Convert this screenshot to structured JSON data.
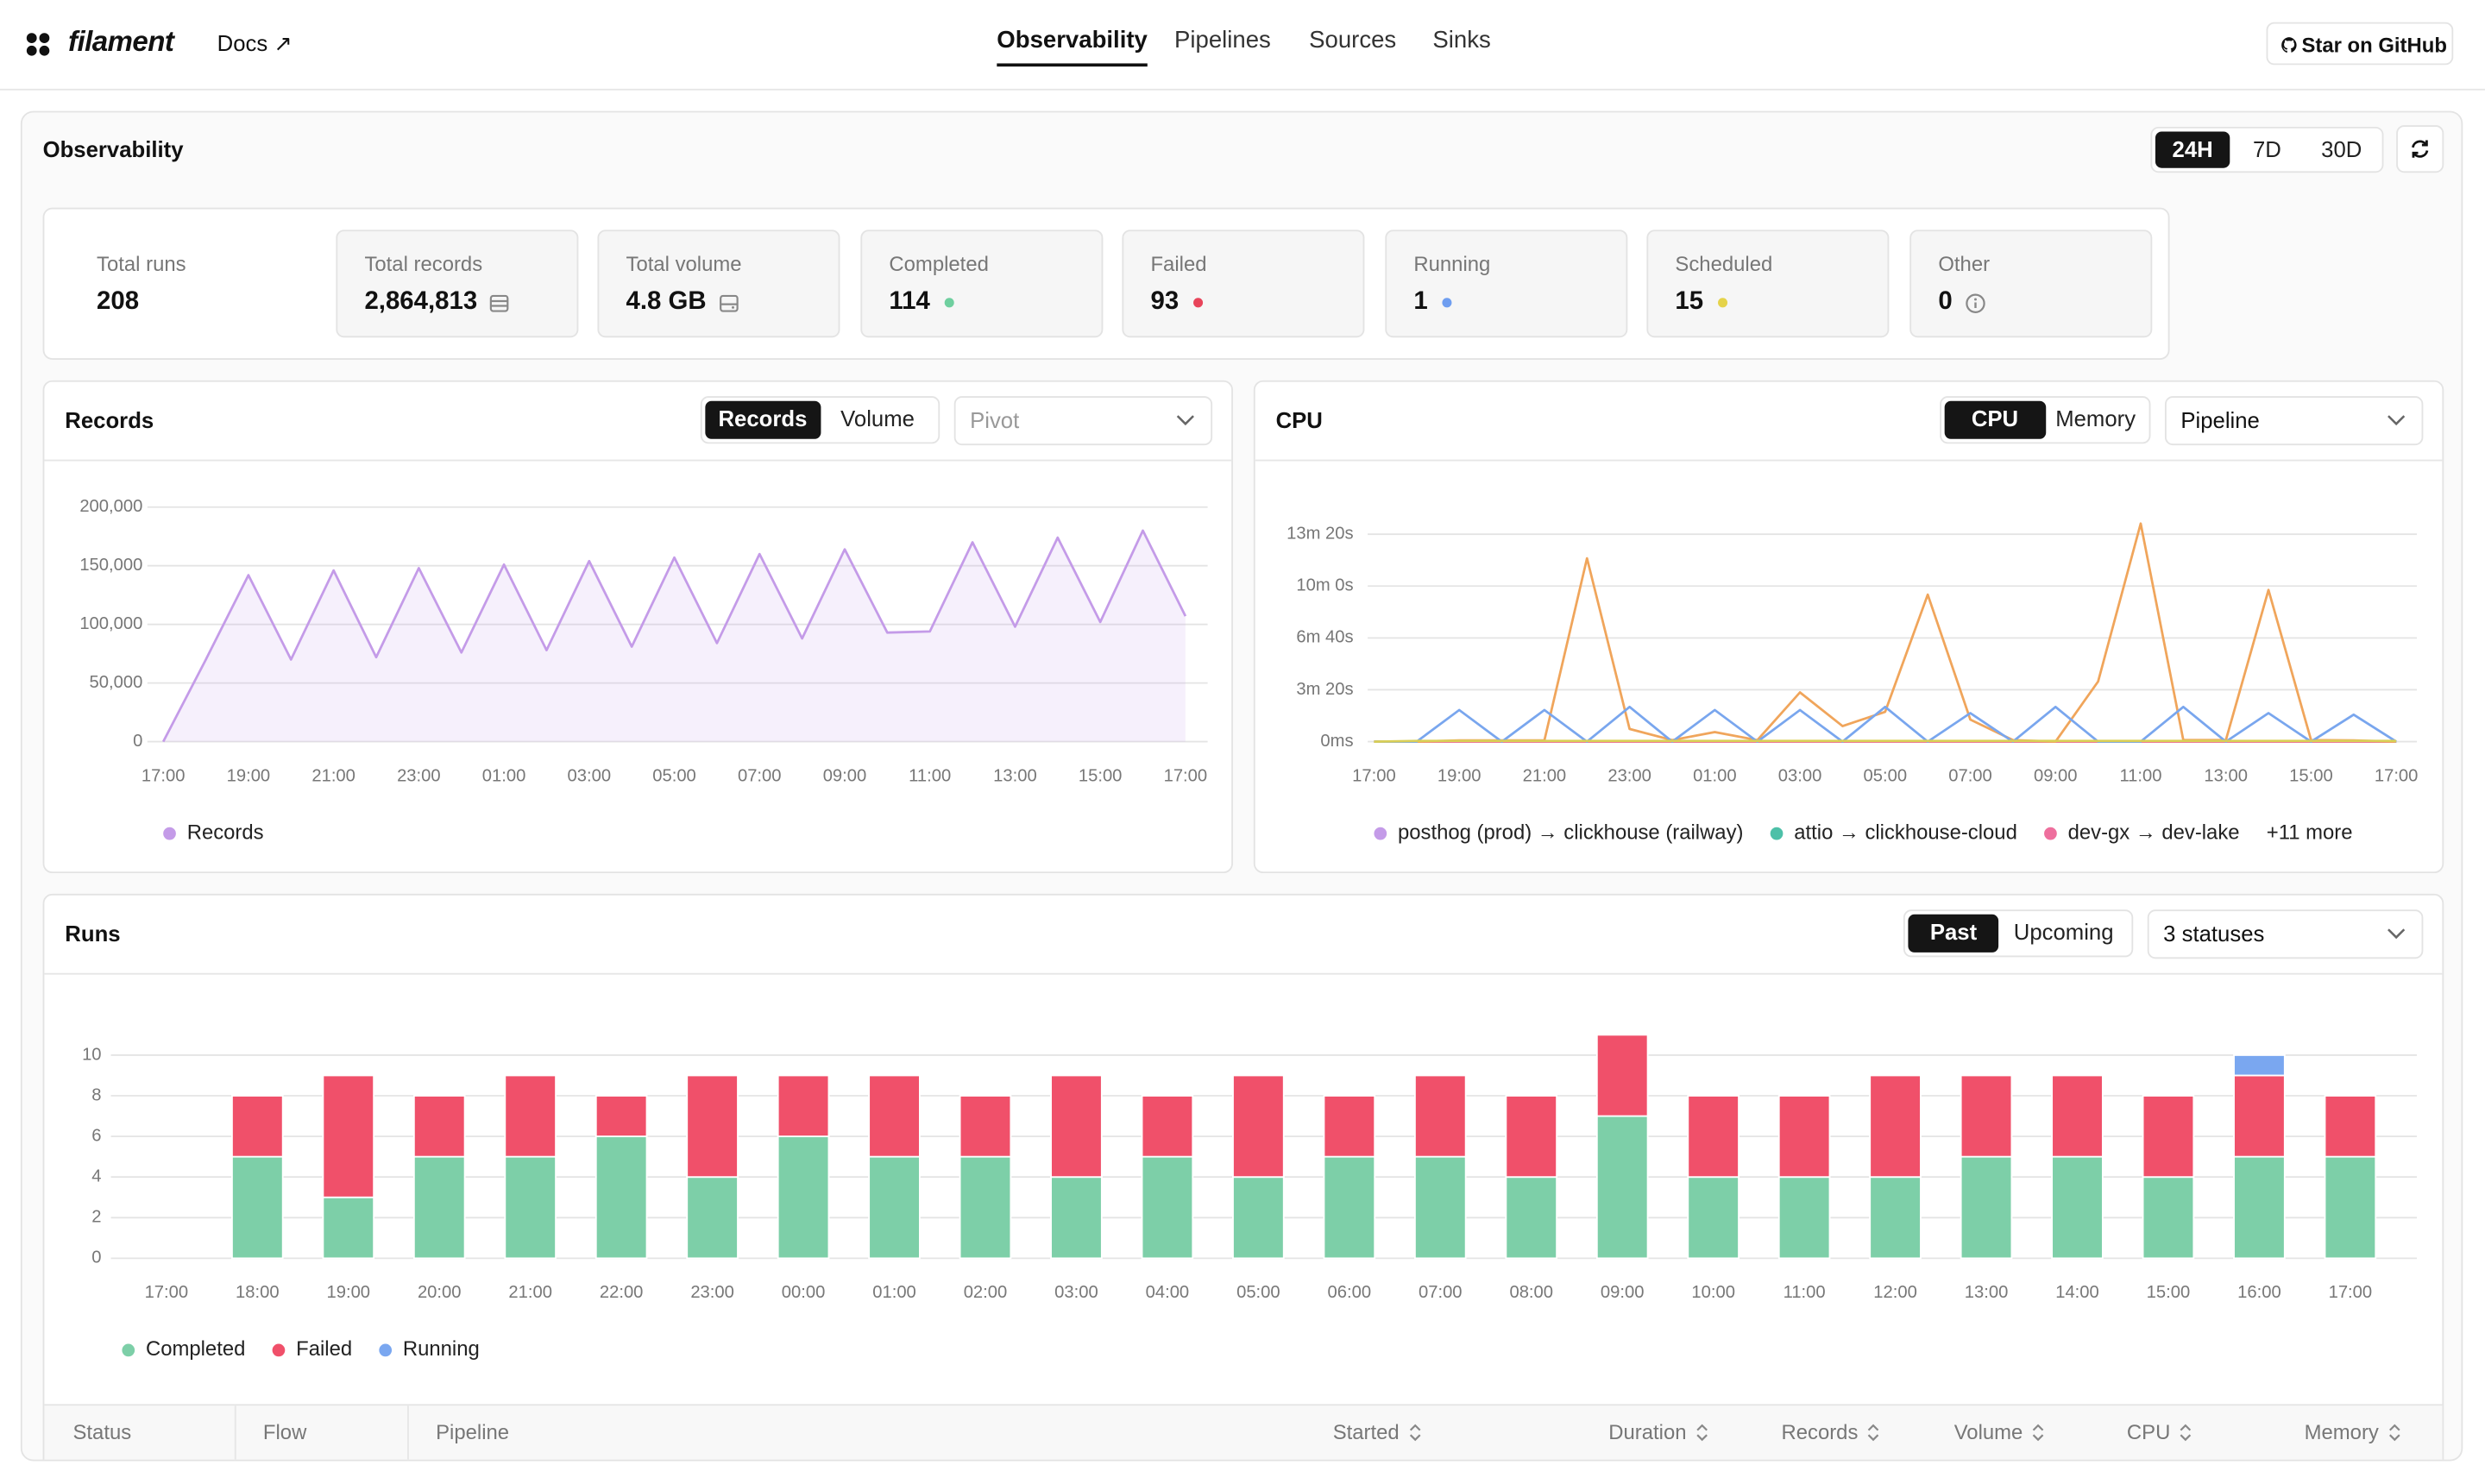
{
  "nav": {
    "brand": "filament",
    "docs": "Docs ↗",
    "tabs": [
      "Observability",
      "Pipelines",
      "Sources",
      "Sinks"
    ],
    "github": "Star on GitHub"
  },
  "page": {
    "title": "Observability",
    "ranges": [
      "24H",
      "7D",
      "30D"
    ]
  },
  "stats": [
    {
      "label": "Total runs",
      "value": "208"
    },
    {
      "label": "Total records",
      "value": "2,864,813"
    },
    {
      "label": "Total volume",
      "value": "4.8 GB"
    },
    {
      "label": "Completed",
      "value": "114"
    },
    {
      "label": "Failed",
      "value": "93"
    },
    {
      "label": "Running",
      "value": "1"
    },
    {
      "label": "Scheduled",
      "value": "15"
    },
    {
      "label": "Other",
      "value": "0"
    }
  ],
  "chart_data": [
    {
      "type": "line",
      "title": "Records",
      "toggles": [
        "Records",
        "Volume"
      ],
      "select": "Pivot",
      "area": true,
      "grid": true,
      "categories": [
        "17:00",
        null,
        "19:00",
        null,
        "21:00",
        null,
        "23:00",
        null,
        "01:00",
        null,
        "03:00",
        null,
        "05:00",
        null,
        "07:00",
        null,
        "09:00",
        null,
        "11:00",
        null,
        "13:00",
        null,
        "15:00",
        null,
        "17:00"
      ],
      "series": [
        {
          "name": "Records",
          "color": "#c49be8",
          "values": [
            0,
            70000,
            142000,
            70000,
            146000,
            72000,
            148000,
            76000,
            151000,
            78000,
            154000,
            81000,
            157000,
            84000,
            160000,
            88000,
            164000,
            93000,
            94000,
            170000,
            98000,
            174000,
            102000,
            180000,
            107000
          ]
        }
      ],
      "ylim": [
        0,
        200000
      ],
      "yticks": [
        0,
        {
          "value": 50000,
          "label": "50,000"
        },
        {
          "value": 100000,
          "label": "100,000"
        },
        {
          "value": 150000,
          "label": "150,000"
        },
        {
          "value": 200000,
          "label": "200,000"
        }
      ]
    },
    {
      "type": "line",
      "title": "CPU",
      "toggles": [
        "CPU",
        "Memory"
      ],
      "select": "Pipeline",
      "grid": true,
      "categories": [
        "17:00",
        null,
        "19:00",
        null,
        "21:00",
        null,
        "23:00",
        null,
        "01:00",
        null,
        "03:00",
        null,
        "05:00",
        null,
        "07:00",
        null,
        "09:00",
        null,
        "11:00",
        null,
        "13:00",
        null,
        "15:00",
        null,
        "17:00"
      ],
      "series": [
        {
          "name": "posthog (prod) → clickhouse (railway)",
          "color": "#c49be8",
          "values": [
            0,
            0,
            0,
            0,
            0,
            0,
            0,
            0,
            0,
            0,
            0,
            0,
            0,
            0,
            0,
            0,
            0,
            0,
            0,
            0,
            0,
            0,
            0,
            0,
            0
          ]
        },
        {
          "name": "attio → clickhouse-cloud",
          "color": "#4dc0a8",
          "values": [
            0,
            0,
            0,
            0,
            0,
            0,
            0,
            0,
            0,
            0,
            0,
            0,
            0,
            0,
            0,
            0,
            0,
            0,
            0,
            0,
            0,
            0,
            0,
            0,
            0
          ]
        },
        {
          "name": "dev-gx → dev-lake",
          "color": "#ee6f9d",
          "values": [
            0,
            0,
            0,
            0,
            0,
            0,
            0,
            0,
            0,
            0,
            0,
            0,
            0,
            0,
            0,
            0,
            0,
            0,
            0,
            0,
            0,
            0,
            0,
            0,
            0
          ]
        },
        {
          "color": "#f0a55b",
          "values": [
            0,
            0,
            5,
            5,
            5,
            707,
            49,
            6,
            37,
            6,
            190,
            60,
            115,
            567,
            85,
            6,
            0,
            232,
            841,
            6,
            6,
            585,
            6,
            5,
            0
          ]
        },
        {
          "color": "#79a6ee",
          "values": [
            0,
            0,
            122,
            0,
            122,
            0,
            134,
            0,
            122,
            0,
            122,
            0,
            134,
            0,
            110,
            0,
            134,
            0,
            0,
            134,
            0,
            110,
            0,
            104,
            0
          ]
        },
        {
          "color": "#d9cf56",
          "values": [
            0,
            3,
            3,
            3,
            3,
            3,
            3,
            3,
            3,
            3,
            3,
            3,
            3,
            3,
            3,
            3,
            3,
            3,
            3,
            3,
            3,
            3,
            3,
            3,
            3
          ]
        }
      ],
      "legend_more": "+11 more",
      "ylim": [
        0,
        880
      ],
      "yticks": [
        {
          "value": 0,
          "label": "0ms"
        },
        {
          "value": 200,
          "label": "3m 20s"
        },
        {
          "value": 400,
          "label": "6m 40s"
        },
        {
          "value": 600,
          "label": "10m 0s"
        },
        {
          "value": 800,
          "label": "13m 20s"
        }
      ]
    },
    {
      "type": "bar",
      "stacked": true,
      "title": "Runs",
      "toggles": [
        "Past",
        "Upcoming"
      ],
      "select": "3 statuses",
      "grid": true,
      "categories": [
        "17:00",
        "18:00",
        "19:00",
        "20:00",
        "21:00",
        "22:00",
        "23:00",
        "00:00",
        "01:00",
        "02:00",
        "03:00",
        "04:00",
        "05:00",
        "06:00",
        "07:00",
        "08:00",
        "09:00",
        "10:00",
        "11:00",
        "12:00",
        "13:00",
        "14:00",
        "15:00",
        "16:00",
        "17:00"
      ],
      "series": [
        {
          "name": "Completed",
          "color": "#7dcfa8",
          "values": [
            0,
            5,
            3,
            5,
            5,
            6,
            4,
            6,
            5,
            5,
            4,
            5,
            4,
            5,
            5,
            4,
            7,
            4,
            4,
            4,
            5,
            5,
            4,
            5,
            5
          ]
        },
        {
          "name": "Failed",
          "color": "#f0506a",
          "values": [
            0,
            3,
            6,
            3,
            4,
            2,
            5,
            3,
            4,
            3,
            5,
            3,
            5,
            3,
            4,
            4,
            4,
            4,
            4,
            5,
            4,
            4,
            4,
            4,
            3
          ]
        },
        {
          "name": "Running",
          "color": "#7aa7f0",
          "values": [
            0,
            0,
            0,
            0,
            0,
            0,
            0,
            0,
            0,
            0,
            0,
            0,
            0,
            0,
            0,
            0,
            0,
            0,
            0,
            0,
            0,
            0,
            0,
            1,
            0
          ]
        }
      ],
      "ylim": [
        0,
        11
      ],
      "yticks": [
        0,
        2,
        4,
        6,
        8,
        10
      ]
    }
  ],
  "table": {
    "headers": [
      "Status",
      "Flow",
      "Pipeline",
      "Started",
      "Duration",
      "Records",
      "Volume",
      "CPU",
      "Memory"
    ]
  }
}
